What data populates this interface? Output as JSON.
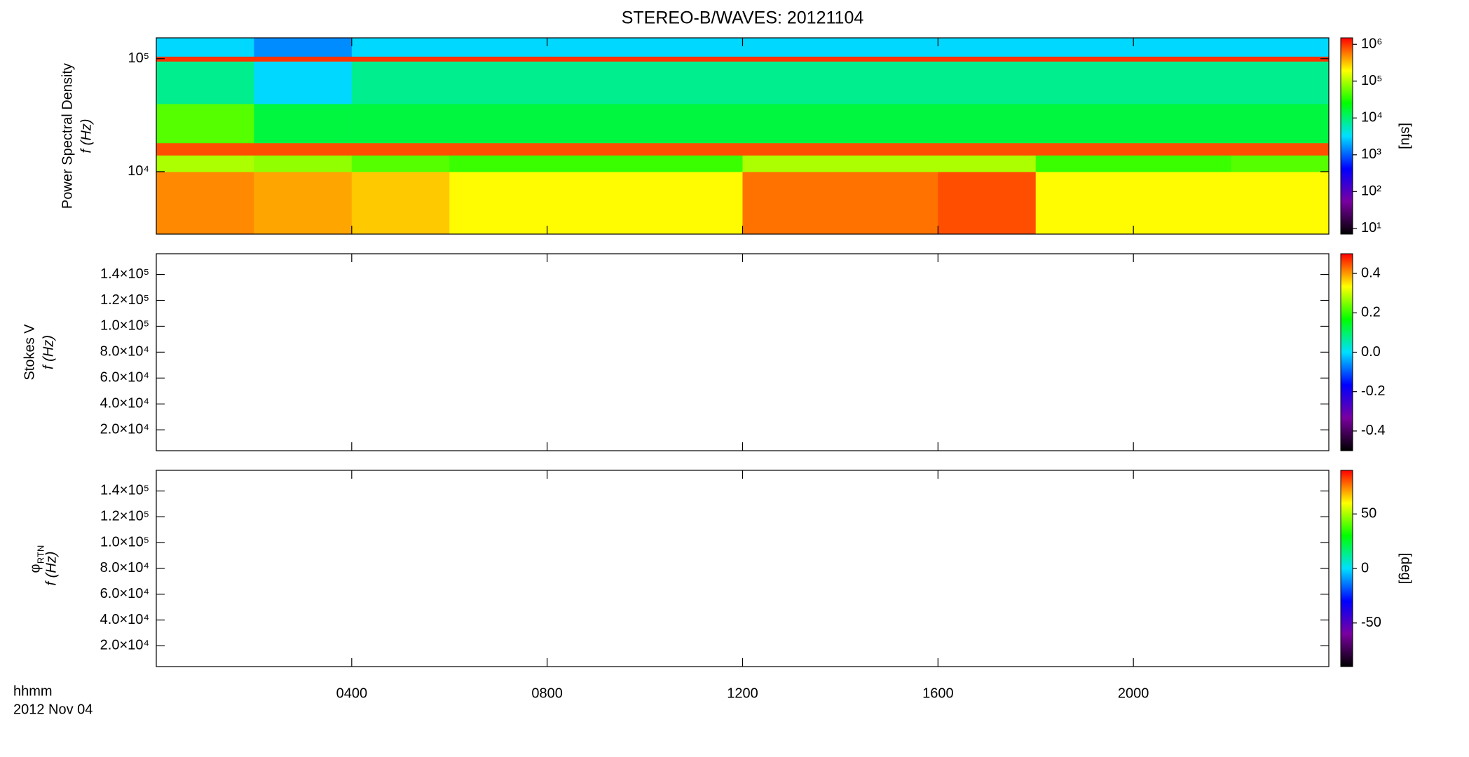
{
  "chart_data": [
    {
      "type": "spectrogram",
      "title": "STEREO-B/WAVES: 20121104",
      "ylabel": [
        "Power Spectral Density",
        "f (Hz)"
      ],
      "ylog": true,
      "ylim": [
        2800,
        153000
      ],
      "yticks": [
        {
          "value": 10000,
          "label": "10⁴"
        },
        {
          "value": 100000,
          "label": "10⁵"
        }
      ],
      "time_edges": [
        0,
        2,
        4,
        6,
        8,
        10,
        12,
        14,
        16,
        18,
        20,
        22,
        24
      ],
      "freq_edges": [
        2800,
        10000,
        14000,
        18000,
        40000,
        95000,
        105000,
        153000
      ],
      "z": [
        [
          500000,
          400000,
          300000,
          200000,
          200000,
          200000,
          600000,
          600000,
          800000,
          200000,
          200000,
          200000
        ],
        [
          100000,
          80000,
          50000,
          40000,
          40000,
          40000,
          100000,
          100000,
          100000,
          40000,
          40000,
          50000
        ],
        [
          800000,
          800000,
          800000,
          800000,
          800000,
          800000,
          800000,
          800000,
          800000,
          800000,
          800000,
          800000
        ],
        [
          50000,
          15000,
          15000,
          15000,
          15000,
          15000,
          15000,
          15000,
          15000,
          15000,
          15000,
          15000
        ],
        [
          8000,
          3000,
          8000,
          8000,
          8000,
          8000,
          8000,
          8000,
          8000,
          8000,
          8000,
          8000
        ],
        [
          1000000,
          1000000,
          1000000,
          1000000,
          1000000,
          1000000,
          1000000,
          1000000,
          1000000,
          1000000,
          1000000,
          1000000
        ],
        [
          3000,
          1500,
          3000,
          3000,
          3000,
          3000,
          3000,
          3000,
          3000,
          3000,
          3000,
          3000
        ]
      ],
      "clog": true,
      "clim": [
        7,
        1500000
      ],
      "cticks": [
        {
          "value": 10,
          "label": "10¹"
        },
        {
          "value": 100,
          "label": "10²"
        },
        {
          "value": 1000,
          "label": "10³"
        },
        {
          "value": 10000,
          "label": "10⁴"
        },
        {
          "value": 100000,
          "label": "10⁵"
        },
        {
          "value": 1000000,
          "label": "10⁶"
        }
      ],
      "clabel": "[sfu]",
      "colorscale": [
        "#000000",
        "#7a00a0",
        "#0000ff",
        "#00e0ff",
        "#00ff00",
        "#ffff00",
        "#ff0000"
      ]
    },
    {
      "type": "spectrogram",
      "ylabel": [
        "Stokes V",
        "f (Hz)"
      ],
      "ylim": [
        3900,
        156000
      ],
      "yticks": [
        {
          "value": 140000,
          "label": "1.4×10⁵"
        },
        {
          "value": 120000,
          "label": "1.2×10⁵"
        },
        {
          "value": 100000,
          "label": "1.0×10⁵"
        },
        {
          "value": 80000,
          "label": "8.0×10⁴"
        },
        {
          "value": 60000,
          "label": "6.0×10⁴"
        },
        {
          "value": 40000,
          "label": "4.0×10⁴"
        },
        {
          "value": 20000,
          "label": "2.0×10⁴"
        }
      ],
      "clim": [
        -0.5,
        0.5
      ],
      "cticks": [
        -0.4,
        -0.2,
        {
          "value": 0,
          "label": "0.0"
        },
        0.2,
        0.4
      ],
      "colorscale": [
        "#000000",
        "#7a00a0",
        "#0000ff",
        "#00e0ff",
        "#00ff00",
        "#ffff00",
        "#ff0000"
      ]
    },
    {
      "type": "spectrogram",
      "ylabel": [
        "φ",
        "f (Hz)"
      ],
      "ylabel_subscript": "RTN",
      "ylim": [
        3900,
        156000
      ],
      "yticks": [
        {
          "value": 140000,
          "label": "1.4×10⁵"
        },
        {
          "value": 120000,
          "label": "1.2×10⁵"
        },
        {
          "value": 100000,
          "label": "1.0×10⁵"
        },
        {
          "value": 80000,
          "label": "8.0×10⁴"
        },
        {
          "value": 60000,
          "label": "6.0×10⁴"
        },
        {
          "value": 40000,
          "label": "4.0×10⁴"
        },
        {
          "value": 20000,
          "label": "2.0×10⁴"
        }
      ],
      "clim": [
        -90,
        90
      ],
      "cticks": [
        -50,
        0,
        50
      ],
      "clabel": "[deg]",
      "colorscale": [
        "#000000",
        "#7a00a0",
        "#0000ff",
        "#00e0ff",
        "#00ff00",
        "#ffff00",
        "#ff0000"
      ],
      "xlim": [
        0,
        24
      ],
      "xticks": [
        {
          "value": 4,
          "label": "0400"
        },
        {
          "value": 8,
          "label": "0800"
        },
        {
          "value": 12,
          "label": "1200"
        },
        {
          "value": 16,
          "label": "1600"
        },
        {
          "value": 20,
          "label": "2000"
        }
      ],
      "xlabel": "hhmm",
      "date": "2012 Nov 04"
    }
  ]
}
